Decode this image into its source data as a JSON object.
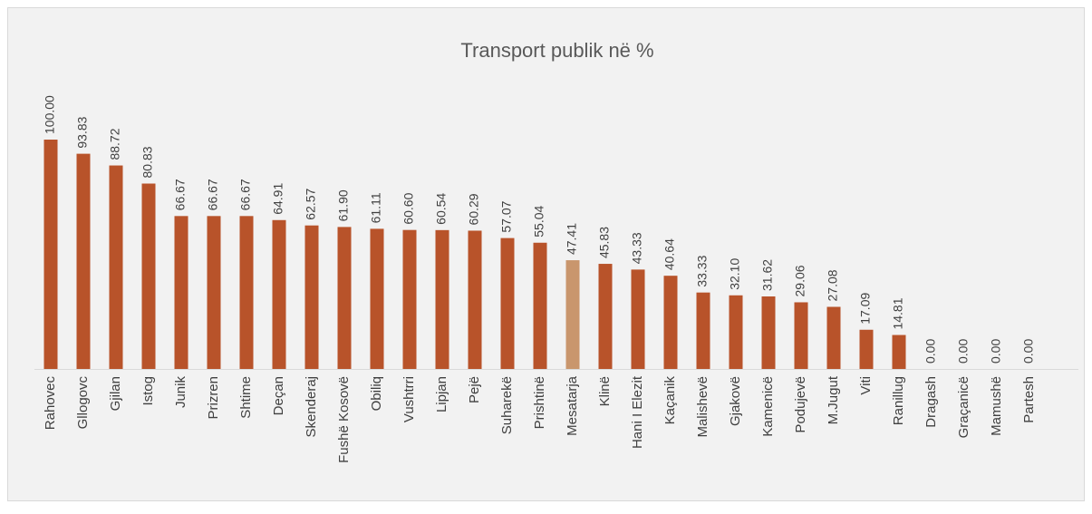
{
  "chart_data": {
    "type": "bar",
    "title": "Transport publik në %",
    "categories": [
      "Rahovec",
      "Gllogovc",
      "Gjilan",
      "Istog",
      "Junik",
      "Prizren",
      "Shtime",
      "Deçan",
      "Skenderaj",
      "Fushë Kosovë",
      "Obiliq",
      "Vushtrri",
      "Lipjan",
      "Pejë",
      "Suharekë",
      "Prishtinë",
      "Mesatarja",
      "Klinë",
      "Hani I Elezit",
      "Kaçanik",
      "Malishevë",
      "Gjakovë",
      "Kamenicë",
      "Podujevë",
      "M.Jugut",
      "Viti",
      "Ranillug",
      "Dragash",
      "Graçanicë",
      "Mamushë",
      "Partesh"
    ],
    "values": [
      100,
      93.83,
      88.72,
      80.83,
      66.67,
      66.67,
      66.67,
      64.91,
      62.57,
      61.9,
      61.11,
      60.6,
      60.54,
      60.29,
      57.07,
      55.04,
      47.41,
      45.83,
      43.33,
      40.64,
      33.33,
      32.1,
      31.62,
      29.06,
      27.08,
      17.09,
      14.81,
      0,
      0,
      0,
      0
    ],
    "value_labels": [
      "100.00",
      "93.83",
      "88.72",
      "80.83",
      "66.67",
      "66.67",
      "66.67",
      "64.91",
      "62.57",
      "61.90",
      "61.11",
      "60.60",
      "60.54",
      "60.29",
      "57.07",
      "55.04",
      "47.41",
      "45.83",
      "43.33",
      "40.64",
      "33.33",
      "32.10",
      "31.62",
      "29.06",
      "27.08",
      "17.09",
      "14.81",
      "0.00",
      "0.00",
      "0.00",
      "0.00"
    ],
    "colors": [
      "#b8532a",
      "#b8532a",
      "#b8532a",
      "#b8532a",
      "#b8532a",
      "#b8532a",
      "#b8532a",
      "#b8532a",
      "#b8532a",
      "#b8532a",
      "#b8532a",
      "#b8532a",
      "#b8532a",
      "#b8532a",
      "#b8532a",
      "#b8532a",
      "#c9966d",
      "#b8532a",
      "#b8532a",
      "#b8532a",
      "#b8532a",
      "#b8532a",
      "#b8532a",
      "#b8532a",
      "#b8532a",
      "#b8532a",
      "#b8532a",
      "#b8532a",
      "#b8532a",
      "#b8532a",
      "#b8532a"
    ],
    "ylim": [
      0,
      100
    ]
  }
}
